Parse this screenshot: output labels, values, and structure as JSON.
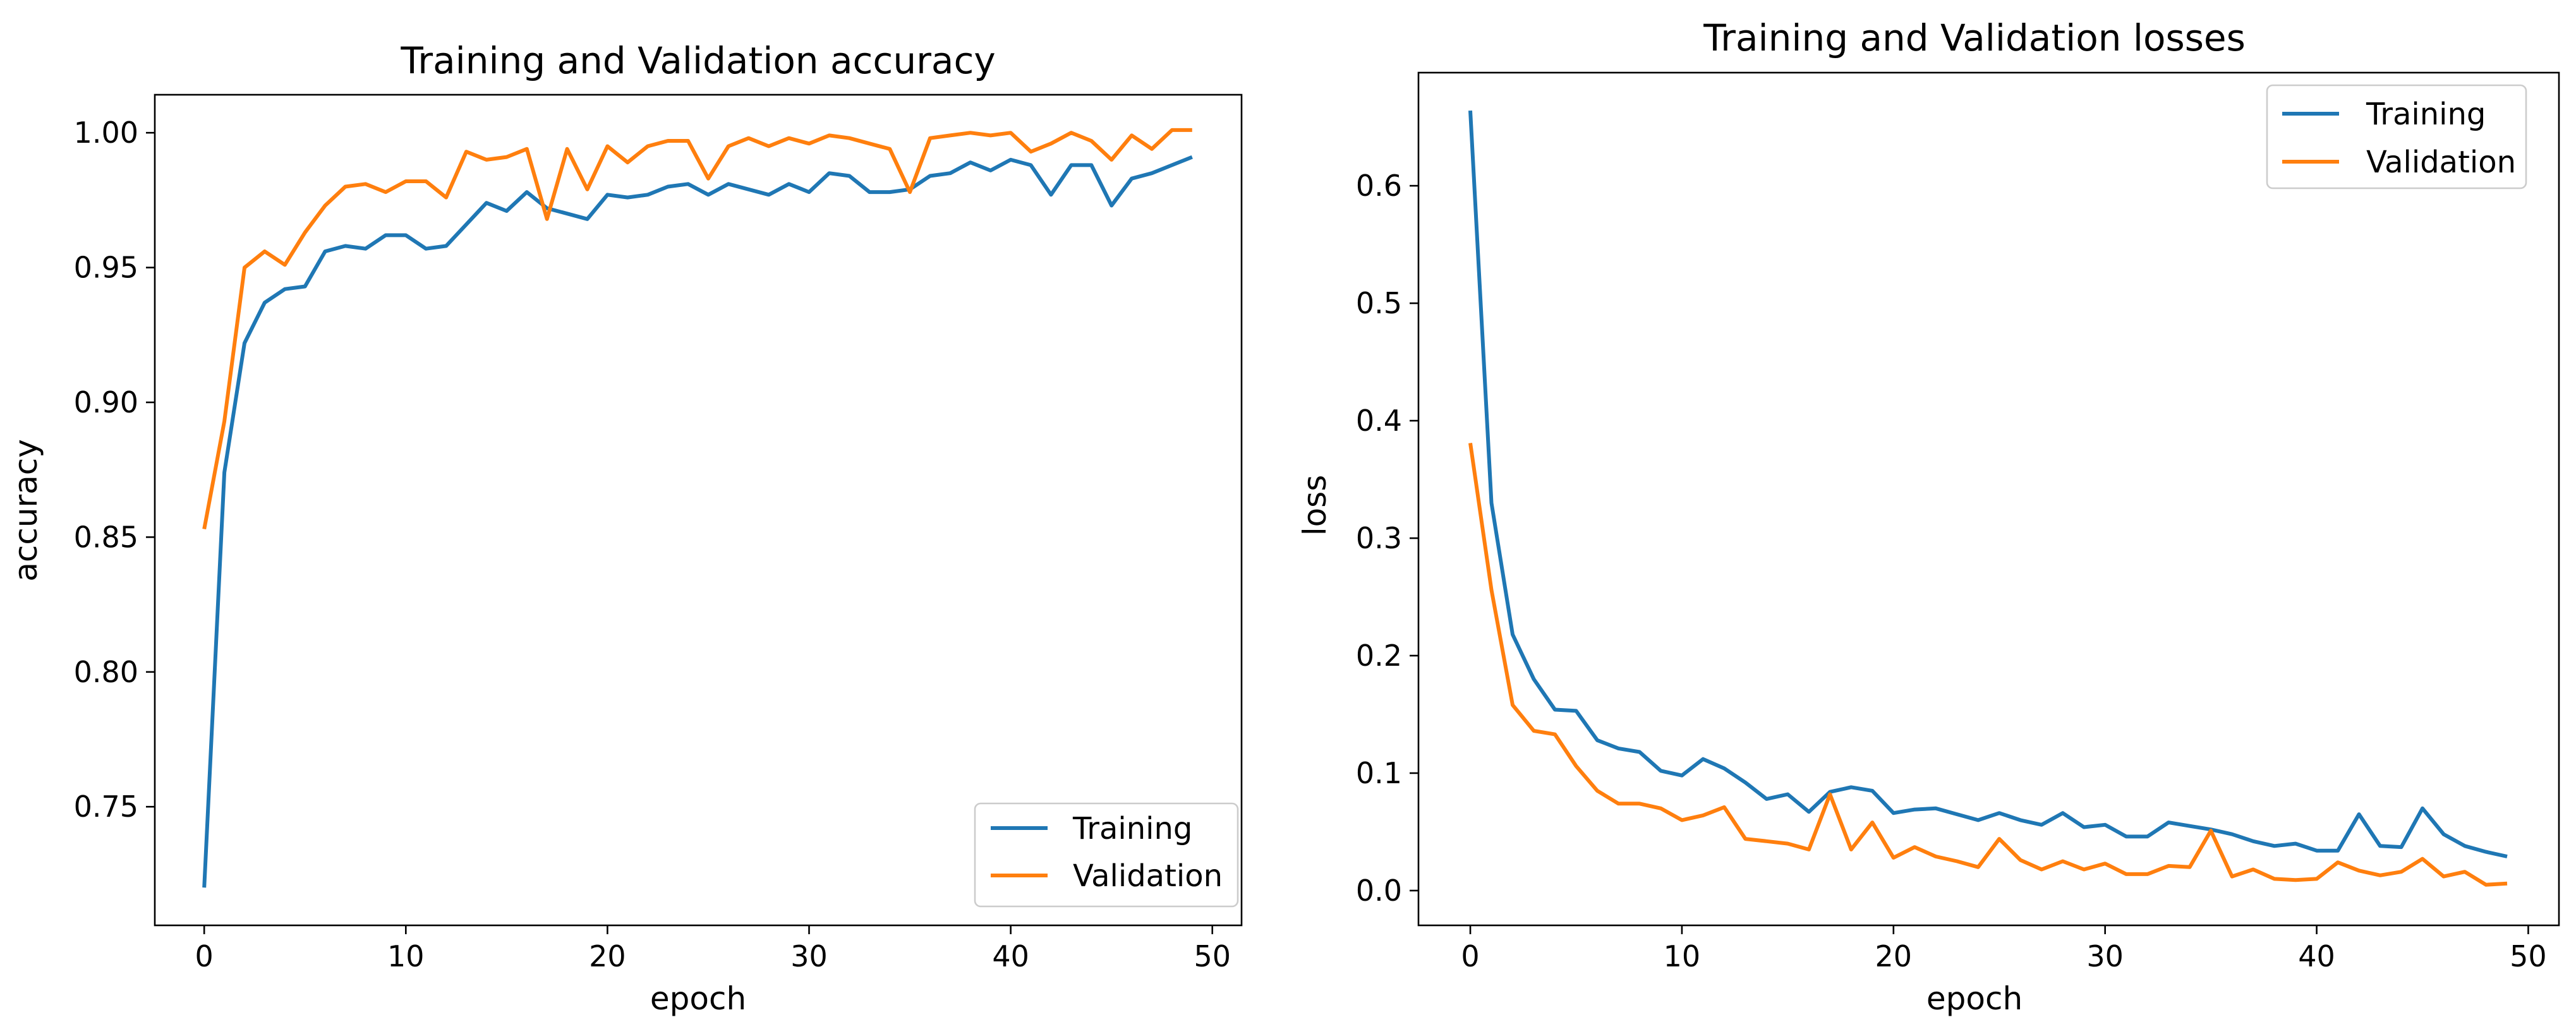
{
  "chart_data": [
    {
      "type": "line",
      "title": "Training and Validation accuracy",
      "xlabel": "epoch",
      "ylabel": "accuracy",
      "xlim": [
        -2.45,
        51.45
      ],
      "ylim": [
        0.706,
        1.0141
      ],
      "xticks": [
        "0",
        "10",
        "20",
        "30",
        "40",
        "50"
      ],
      "yticks": [
        "0.75",
        "0.80",
        "0.85",
        "0.90",
        "0.95",
        "1.00"
      ],
      "grid": false,
      "legend": "lower right",
      "x": [
        0,
        1,
        2,
        3,
        4,
        5,
        6,
        7,
        8,
        9,
        10,
        11,
        12,
        13,
        14,
        15,
        16,
        17,
        18,
        19,
        20,
        21,
        22,
        23,
        24,
        25,
        26,
        27,
        28,
        29,
        30,
        31,
        32,
        33,
        34,
        35,
        36,
        37,
        38,
        39,
        40,
        41,
        42,
        43,
        44,
        45,
        46,
        47,
        48,
        49
      ],
      "series": [
        {
          "name": "Training",
          "color": "#1f77b4",
          "values": [
            0.72,
            0.874,
            0.922,
            0.937,
            0.942,
            0.943,
            0.956,
            0.958,
            0.957,
            0.962,
            0.962,
            0.957,
            0.958,
            0.966,
            0.974,
            0.971,
            0.978,
            0.972,
            0.97,
            0.968,
            0.977,
            0.976,
            0.977,
            0.98,
            0.981,
            0.977,
            0.981,
            0.979,
            0.977,
            0.981,
            0.978,
            0.985,
            0.984,
            0.978,
            0.978,
            0.979,
            0.984,
            0.985,
            0.989,
            0.986,
            0.99,
            0.988,
            0.977,
            0.988,
            0.988,
            0.973,
            0.983,
            0.985,
            0.988,
            0.991
          ]
        },
        {
          "name": "Validation",
          "color": "#ff7f0e",
          "values": [
            0.853,
            0.893,
            0.95,
            0.956,
            0.951,
            0.963,
            0.973,
            0.98,
            0.981,
            0.978,
            0.982,
            0.982,
            0.976,
            0.993,
            0.99,
            0.991,
            0.994,
            0.968,
            0.994,
            0.979,
            0.995,
            0.989,
            0.995,
            0.997,
            0.997,
            0.983,
            0.995,
            0.998,
            0.995,
            0.998,
            0.996,
            0.999,
            0.998,
            0.996,
            0.994,
            0.978,
            0.998,
            0.999,
            1.0,
            0.999,
            1.0,
            0.993,
            0.996,
            1.0,
            0.997,
            0.99,
            0.999,
            0.994,
            1.001,
            1.001
          ]
        }
      ]
    },
    {
      "type": "line",
      "title": "Training and Validation losses",
      "xlabel": "epoch",
      "ylabel": "loss",
      "xlim": [
        -2.45,
        51.45
      ],
      "ylim": [
        -0.0296,
        0.6963
      ],
      "xticks": [
        "0",
        "10",
        "20",
        "30",
        "40",
        "50"
      ],
      "yticks": [
        "0.0",
        "0.1",
        "0.2",
        "0.3",
        "0.4",
        "0.5",
        "0.6"
      ],
      "grid": false,
      "legend": "upper right",
      "x": [
        0,
        1,
        2,
        3,
        4,
        5,
        6,
        7,
        8,
        9,
        10,
        11,
        12,
        13,
        14,
        15,
        16,
        17,
        18,
        19,
        20,
        21,
        22,
        23,
        24,
        25,
        26,
        27,
        28,
        29,
        30,
        31,
        32,
        33,
        34,
        35,
        36,
        37,
        38,
        39,
        40,
        41,
        42,
        43,
        44,
        45,
        46,
        47,
        48,
        49
      ],
      "series": [
        {
          "name": "Training",
          "color": "#1f77b4",
          "values": [
            0.664,
            0.33,
            0.218,
            0.18,
            0.154,
            0.153,
            0.128,
            0.121,
            0.118,
            0.102,
            0.098,
            0.112,
            0.104,
            0.092,
            0.078,
            0.082,
            0.067,
            0.084,
            0.088,
            0.085,
            0.066,
            0.069,
            0.07,
            0.065,
            0.06,
            0.066,
            0.06,
            0.056,
            0.066,
            0.054,
            0.056,
            0.046,
            0.046,
            0.058,
            0.055,
            0.052,
            0.048,
            0.042,
            0.038,
            0.04,
            0.034,
            0.034,
            0.065,
            0.038,
            0.037,
            0.07,
            0.048,
            0.038,
            0.033,
            0.029
          ]
        },
        {
          "name": "Validation",
          "color": "#ff7f0e",
          "values": [
            0.381,
            0.256,
            0.158,
            0.136,
            0.133,
            0.106,
            0.085,
            0.074,
            0.074,
            0.07,
            0.06,
            0.064,
            0.071,
            0.044,
            0.042,
            0.04,
            0.035,
            0.082,
            0.035,
            0.058,
            0.028,
            0.037,
            0.029,
            0.025,
            0.02,
            0.044,
            0.026,
            0.018,
            0.025,
            0.018,
            0.023,
            0.014,
            0.014,
            0.021,
            0.02,
            0.051,
            0.012,
            0.018,
            0.01,
            0.009,
            0.01,
            0.024,
            0.017,
            0.013,
            0.016,
            0.027,
            0.012,
            0.016,
            0.005,
            0.006
          ]
        }
      ]
    }
  ]
}
